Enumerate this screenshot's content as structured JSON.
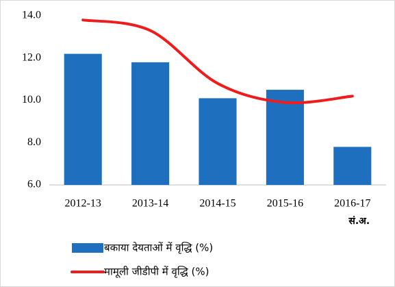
{
  "chart_data": {
    "type": "bar+line",
    "categories": [
      "2012-13",
      "2013-14",
      "2014-15",
      "2015-16",
      "2016-17"
    ],
    "category_note": "सं.अ.",
    "series": [
      {
        "name": "बकाया देयताओं में वृद्धि (%)",
        "type": "bar",
        "color": "#1f6fbf",
        "values": [
          12.2,
          11.8,
          10.1,
          10.5,
          7.8
        ]
      },
      {
        "name": "मामूली जीडीपी में वृद्धि (%)",
        "type": "line",
        "color": "#ee1c1c",
        "values": [
          13.8,
          13.3,
          10.8,
          9.9,
          10.2
        ]
      }
    ],
    "ylim": [
      6.0,
      14.0
    ],
    "yticks": [
      {
        "value": 6,
        "label": "6.0"
      },
      {
        "value": 8,
        "label": "8.0"
      },
      {
        "value": 10,
        "label": "10.0"
      },
      {
        "value": 12,
        "label": "12.0"
      },
      {
        "value": 14,
        "label": "14.0"
      }
    ],
    "grid": false,
    "legend": "bottom"
  }
}
